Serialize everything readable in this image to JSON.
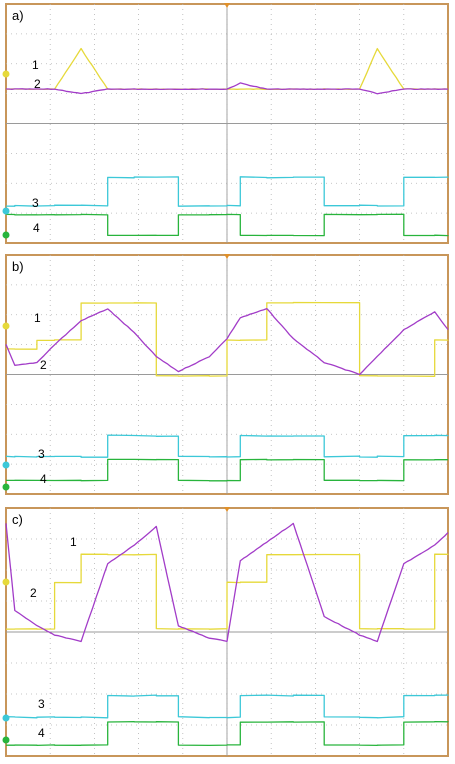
{
  "figure": {
    "colors": {
      "frame": "#c8965a",
      "grid_dot": "#b4b4b4",
      "background": "#ffffff",
      "ch1": "#e6d93a",
      "ch2": "#a23cc8",
      "ch3": "#3cc8d8",
      "ch4": "#28b43c"
    }
  },
  "chart_data": [
    {
      "panel": "a)",
      "type": "line",
      "x_divisions": 10,
      "y_divisions": 8,
      "x": [
        0,
        0.2,
        0.7,
        1.1,
        1.7,
        2.3,
        2.9,
        3.4,
        3.9,
        4.6,
        5.0,
        5.3,
        5.9,
        6.5,
        7.2,
        8.0,
        8.4,
        9.0,
        9.7,
        10.0
      ],
      "series": [
        {
          "name": "1",
          "color_key": "ch1",
          "values": [
            5.15,
            5.15,
            5.15,
            5.15,
            6.5,
            5.15,
            5.15,
            5.15,
            5.15,
            5.15,
            5.15,
            5.15,
            5.15,
            5.15,
            5.15,
            5.15,
            6.5,
            5.15,
            5.15,
            5.15
          ]
        },
        {
          "name": "2",
          "color_key": "ch2",
          "values": [
            5.15,
            5.15,
            5.15,
            5.15,
            5.0,
            5.15,
            5.15,
            5.15,
            5.15,
            5.15,
            5.15,
            5.35,
            5.15,
            5.15,
            5.15,
            5.15,
            5.0,
            5.15,
            5.15,
            5.15
          ]
        },
        {
          "name": "3",
          "color_key": "ch3",
          "values": [
            1.25,
            1.25,
            1.25,
            1.25,
            1.25,
            2.2,
            2.2,
            2.2,
            1.25,
            1.25,
            1.25,
            2.2,
            2.2,
            2.2,
            1.25,
            1.25,
            1.25,
            2.2,
            2.2,
            2.2
          ]
        },
        {
          "name": "4",
          "color_key": "ch4",
          "values": [
            0.95,
            0.95,
            0.95,
            0.95,
            0.95,
            0.25,
            0.25,
            0.25,
            0.95,
            0.95,
            0.95,
            0.25,
            0.25,
            0.25,
            0.95,
            0.95,
            0.95,
            0.25,
            0.25,
            0.25
          ]
        }
      ]
    },
    {
      "panel": "b)",
      "type": "line",
      "x_divisions": 10,
      "y_divisions": 8,
      "x": [
        0,
        0.2,
        0.7,
        1.1,
        1.7,
        2.3,
        2.9,
        3.4,
        3.9,
        4.6,
        5.0,
        5.3,
        5.9,
        6.5,
        7.2,
        8.0,
        8.4,
        9.0,
        9.7,
        10.0
      ],
      "series": [
        {
          "name": "1",
          "color_key": "ch1",
          "values": [
            4.85,
            4.85,
            5.15,
            5.15,
            6.4,
            6.4,
            6.4,
            3.95,
            3.95,
            3.95,
            5.15,
            5.15,
            6.4,
            6.4,
            6.4,
            3.95,
            3.95,
            3.95,
            5.15,
            5.15
          ]
        },
        {
          "name": "2",
          "color_key": "ch2",
          "values": [
            5.0,
            4.3,
            4.4,
            5.0,
            5.8,
            6.2,
            5.4,
            4.6,
            4.1,
            4.6,
            5.2,
            5.9,
            6.2,
            5.2,
            4.4,
            4.0,
            4.6,
            5.5,
            6.1,
            5.5
          ]
        },
        {
          "name": "3",
          "color_key": "ch3",
          "values": [
            1.25,
            1.25,
            1.25,
            1.25,
            1.25,
            1.95,
            1.95,
            1.95,
            1.25,
            1.25,
            1.25,
            1.95,
            1.95,
            1.95,
            1.25,
            1.25,
            1.25,
            1.95,
            1.95,
            1.95
          ]
        },
        {
          "name": "4",
          "color_key": "ch4",
          "values": [
            0.45,
            0.45,
            0.45,
            0.45,
            0.45,
            1.15,
            1.15,
            1.15,
            0.45,
            0.45,
            0.45,
            1.15,
            1.15,
            1.15,
            0.45,
            0.45,
            0.45,
            1.15,
            1.15,
            1.15
          ]
        }
      ]
    },
    {
      "panel": "c)",
      "type": "line",
      "x_divisions": 10,
      "y_divisions": 8,
      "x": [
        0,
        0.2,
        0.7,
        1.1,
        1.7,
        2.3,
        2.9,
        3.4,
        3.9,
        4.6,
        5.0,
        5.3,
        5.9,
        6.5,
        7.2,
        8.0,
        8.4,
        9.0,
        9.7,
        10.0
      ],
      "series": [
        {
          "name": "1",
          "color_key": "ch1",
          "values": [
            4.1,
            4.1,
            4.1,
            5.6,
            6.5,
            6.5,
            6.5,
            4.1,
            4.1,
            4.1,
            5.6,
            5.6,
            6.5,
            6.5,
            6.5,
            4.1,
            4.1,
            4.1,
            6.5,
            6.5
          ]
        },
        {
          "name": "2",
          "color_key": "ch2",
          "values": [
            7.5,
            4.7,
            4.2,
            3.9,
            3.7,
            6.2,
            6.8,
            7.4,
            4.2,
            3.8,
            3.7,
            6.3,
            6.9,
            7.5,
            4.5,
            3.9,
            3.7,
            6.2,
            6.8,
            7.2
          ]
        },
        {
          "name": "3",
          "color_key": "ch3",
          "values": [
            1.25,
            1.25,
            1.25,
            1.25,
            1.25,
            1.95,
            1.95,
            1.95,
            1.25,
            1.25,
            1.25,
            1.95,
            1.95,
            1.95,
            1.25,
            1.25,
            1.25,
            1.95,
            1.95,
            1.95
          ]
        },
        {
          "name": "4",
          "color_key": "ch4",
          "values": [
            0.35,
            0.35,
            0.35,
            0.35,
            0.35,
            1.1,
            1.1,
            1.1,
            0.35,
            0.35,
            0.35,
            1.1,
            1.1,
            1.1,
            0.35,
            0.35,
            0.35,
            1.1,
            1.1,
            1.1
          ]
        }
      ]
    }
  ]
}
